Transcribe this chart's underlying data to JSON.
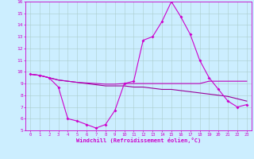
{
  "title": "",
  "xlabel": "Windchill (Refroidissement éolien,°C)",
  "xlim": [
    -0.5,
    23.5
  ],
  "ylim": [
    5,
    16
  ],
  "yticks": [
    5,
    6,
    7,
    8,
    9,
    10,
    11,
    12,
    13,
    14,
    15,
    16
  ],
  "xticks": [
    0,
    1,
    2,
    3,
    4,
    5,
    6,
    7,
    8,
    9,
    10,
    11,
    12,
    13,
    14,
    15,
    16,
    17,
    18,
    19,
    20,
    21,
    22,
    23
  ],
  "bg_color": "#cceeff",
  "grid_color": "#aacccc",
  "line_color": "#cc00cc",
  "line1_color": "#cc00cc",
  "line2_color": "#990099",
  "line3_color": "#bb00bb",
  "line1": {
    "x": [
      0,
      1,
      2,
      3,
      4,
      5,
      6,
      7,
      8,
      9,
      10,
      11,
      12,
      13,
      14,
      15,
      16,
      17,
      18,
      19,
      20,
      21,
      22,
      23
    ],
    "y": [
      9.8,
      9.7,
      9.5,
      8.7,
      6.0,
      5.8,
      5.5,
      5.2,
      5.5,
      6.7,
      9.0,
      9.2,
      12.7,
      13.0,
      14.3,
      16.0,
      14.7,
      13.2,
      11.0,
      9.5,
      8.5,
      7.5,
      7.0,
      7.2
    ]
  },
  "line2": {
    "x": [
      0,
      1,
      2,
      3,
      4,
      5,
      6,
      7,
      8,
      9,
      10,
      11,
      12,
      13,
      14,
      15,
      16,
      17,
      18,
      19,
      20,
      21,
      22,
      23
    ],
    "y": [
      9.8,
      9.7,
      9.5,
      9.3,
      9.2,
      9.1,
      9.0,
      8.9,
      8.8,
      8.8,
      8.8,
      8.7,
      8.7,
      8.6,
      8.5,
      8.5,
      8.4,
      8.3,
      8.2,
      8.1,
      8.0,
      7.9,
      7.7,
      7.5
    ]
  },
  "line3": {
    "x": [
      0,
      1,
      2,
      3,
      4,
      5,
      6,
      7,
      8,
      9,
      10,
      11,
      12,
      13,
      14,
      15,
      16,
      17,
      18,
      19,
      20,
      21,
      22,
      23
    ],
    "y": [
      9.8,
      9.7,
      9.5,
      9.3,
      9.2,
      9.1,
      9.05,
      9.0,
      8.95,
      8.95,
      9.0,
      9.0,
      9.0,
      9.0,
      9.0,
      9.0,
      9.0,
      9.0,
      9.0,
      9.2,
      9.2,
      9.2,
      9.2,
      9.2
    ]
  }
}
